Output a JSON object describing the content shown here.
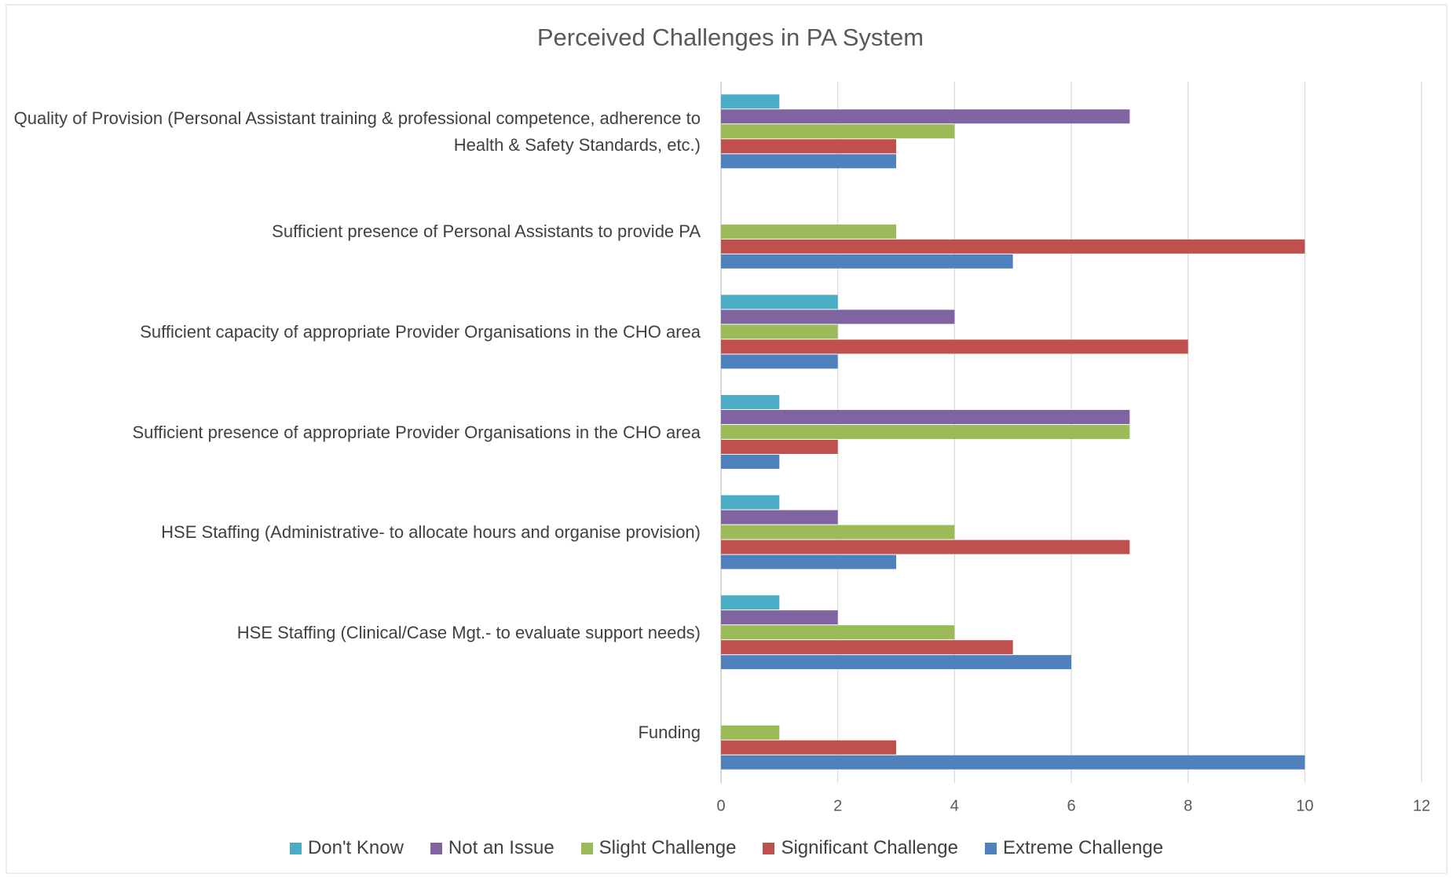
{
  "chart_data": {
    "type": "bar",
    "orientation": "horizontal",
    "title": "Perceived Challenges in PA System",
    "categories": [
      "Quality of Provision (Personal Assistant training & professional competence, adherence to Health & Safety Standards, etc.)",
      "Sufficient presence of Personal Assistants to provide PA",
      "Sufficient capacity of appropriate Provider Organisations in the CHO area",
      "Sufficient presence of appropriate Provider Organisations in the CHO area",
      "HSE Staffing (Administrative- to allocate hours and organise provision)",
      "HSE Staffing (Clinical/Case Mgt.- to evaluate support needs)",
      "Funding"
    ],
    "series": [
      {
        "name": "Don't Know",
        "color": "#4bacc6",
        "values": [
          1,
          0,
          2,
          1,
          1,
          1,
          0
        ]
      },
      {
        "name": "Not an Issue",
        "color": "#8064a2",
        "values": [
          7,
          0,
          4,
          7,
          2,
          2,
          0
        ]
      },
      {
        "name": "Slight Challenge",
        "color": "#9bbb59",
        "values": [
          4,
          3,
          2,
          7,
          4,
          4,
          1
        ]
      },
      {
        "name": "Significant Challenge",
        "color": "#c0504d",
        "values": [
          3,
          10,
          8,
          2,
          7,
          5,
          3
        ]
      },
      {
        "name": "Extreme Challenge",
        "color": "#4f81bd",
        "values": [
          3,
          5,
          2,
          1,
          3,
          6,
          10
        ]
      }
    ],
    "xlim": [
      0,
      12
    ],
    "xticks": [
      0,
      2,
      4,
      6,
      8,
      10,
      12
    ],
    "grid": true,
    "legend": "bottom"
  }
}
